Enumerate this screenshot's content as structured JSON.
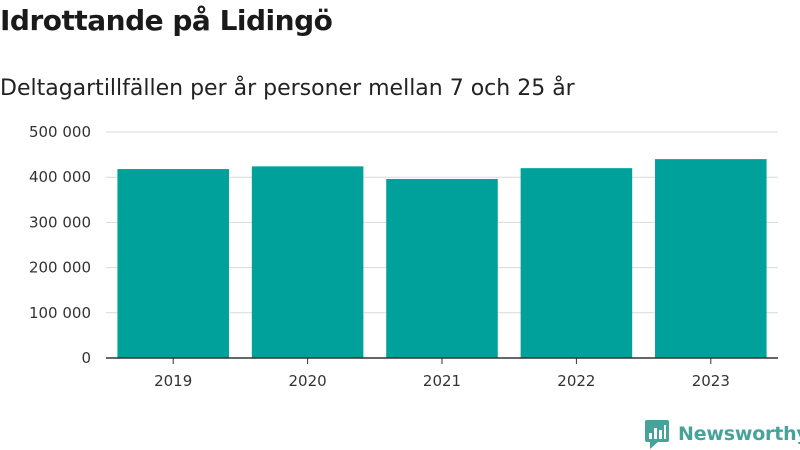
{
  "chart_data": {
    "type": "bar",
    "title": "Idrottande på Lidingö",
    "subtitle": "Deltagartillfällen per år personer mellan 7 och 25 år",
    "categories": [
      "2019",
      "2020",
      "2021",
      "2022",
      "2023"
    ],
    "values": [
      418000,
      424000,
      396000,
      420000,
      440000
    ],
    "ylim": [
      0,
      500000
    ],
    "yticks": [
      0,
      100000,
      200000,
      300000,
      400000,
      500000
    ],
    "ytick_labels": [
      "0",
      "100 000",
      "200 000",
      "300 000",
      "400 000",
      "500 000"
    ],
    "xlabel": "",
    "ylabel": "",
    "grid": true,
    "bar_color": "#00a19a",
    "grid_color": "#d9d9d9",
    "axis_color": "#333333"
  },
  "branding": {
    "logo_text": "Newsworthy",
    "logo_icon": "newsworthy-logo-icon",
    "logo_color": "#47a39a"
  }
}
